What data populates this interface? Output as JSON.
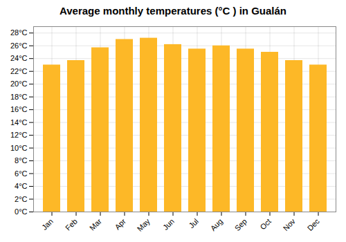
{
  "chart_data": {
    "type": "bar",
    "title": "Average monthly temperatures (°C ) in Gualán",
    "categories": [
      "Jan",
      "Feb",
      "Mar",
      "Apr",
      "May",
      "Jun",
      "Jul",
      "Aug",
      "Sep",
      "Oct",
      "Nov",
      "Dec"
    ],
    "values": [
      23.0,
      23.7,
      25.7,
      27.0,
      27.2,
      26.2,
      25.5,
      26.0,
      25.5,
      25.0,
      23.7,
      23.0
    ],
    "color": "#FDB827",
    "ylim": [
      0,
      29
    ],
    "yticks": [
      {
        "value": 0,
        "label": "0°C"
      },
      {
        "value": 2,
        "label": "2°C"
      },
      {
        "value": 4,
        "label": "4°C"
      },
      {
        "value": 6,
        "label": "6°C"
      },
      {
        "value": 8,
        "label": "8°C"
      },
      {
        "value": 10,
        "label": "10°C"
      },
      {
        "value": 12,
        "label": "12°C"
      },
      {
        "value": 14,
        "label": "14°C"
      },
      {
        "value": 16,
        "label": "16°C"
      },
      {
        "value": 18,
        "label": "18°C"
      },
      {
        "value": 20,
        "label": "20°C"
      },
      {
        "value": 22,
        "label": "22°C"
      },
      {
        "value": 24,
        "label": "24°C"
      },
      {
        "value": 26,
        "label": "26°C"
      },
      {
        "value": 28,
        "label": "28°C"
      }
    ],
    "grid": true
  }
}
